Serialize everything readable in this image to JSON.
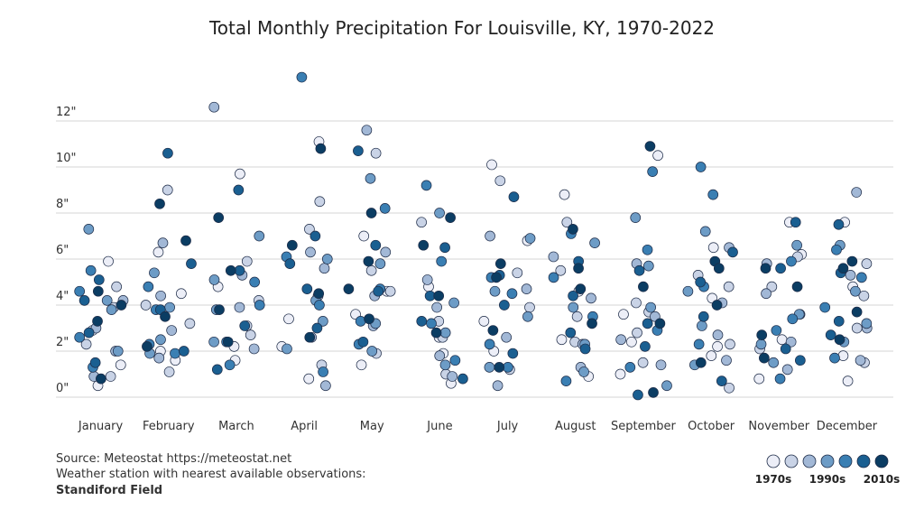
{
  "chart_data": {
    "type": "strip",
    "title": "Total Monthly Precipitation For Louisville, KY, 1970-2022",
    "categories": [
      "January",
      "February",
      "March",
      "April",
      "May",
      "June",
      "July",
      "August",
      "September",
      "October",
      "November",
      "December"
    ],
    "ylim": [
      0,
      14
    ],
    "yticks": [
      {
        "value": 0,
        "label": "0\""
      },
      {
        "value": 2,
        "label": "2\""
      },
      {
        "value": 4,
        "label": "4\""
      },
      {
        "value": 6,
        "label": "6\""
      },
      {
        "value": 8,
        "label": "8\""
      },
      {
        "value": 10,
        "label": "10\""
      },
      {
        "value": 12,
        "label": "12\""
      }
    ],
    "grid": true,
    "series": [
      {
        "color": "#eceef7",
        "values": [
          [
            1.4,
            2.9,
            0.5,
            5.9
          ],
          [
            1.6,
            2.0,
            6.3,
            4.5
          ],
          [
            9.7,
            2.2,
            4.8,
            1.6
          ],
          [
            11.1,
            3.4,
            0.8,
            2.2
          ],
          [
            7.0,
            3.6,
            1.4,
            4.6
          ],
          [
            2.6,
            0.6,
            4.8,
            1.9
          ],
          [
            10.1,
            2.0,
            6.8,
            3.3
          ],
          [
            8.8,
            2.5,
            4.6,
            0.9
          ],
          [
            10.5,
            3.6,
            1.0,
            2.4
          ],
          [
            4.3,
            6.5,
            1.8,
            2.2
          ],
          [
            7.6,
            6.2,
            0.8,
            2.5
          ],
          [
            7.6,
            4.8,
            0.7,
            1.8
          ]
        ]
      },
      {
        "color": "#c9d3e6",
        "values": [
          [
            3.9,
            2.3,
            4.8,
            0.9
          ],
          [
            9.0,
            3.2,
            1.1,
            4.0
          ],
          [
            5.9,
            2.7,
            4.2,
            3.1
          ],
          [
            8.5,
            7.3,
            4.4,
            1.4
          ],
          [
            10.6,
            4.6,
            1.9,
            5.5
          ],
          [
            7.6,
            3.3,
            2.6,
            1.0
          ],
          [
            9.4,
            5.4,
            1.2,
            3.9
          ],
          [
            7.6,
            5.5,
            2.4,
            3.5
          ],
          [
            3.7,
            1.5,
            4.1,
            2.8
          ],
          [
            4.8,
            2.3,
            0.4,
            5.3
          ],
          [
            6.1,
            3.6,
            2.1,
            4.8
          ],
          [
            5.8,
            3.0,
            1.5,
            4.4
          ]
        ]
      },
      {
        "color": "#a2b8d6",
        "values": [
          [
            4.2,
            3.0,
            2.0,
            0.9
          ],
          [
            6.7,
            4.4,
            2.9,
            1.7
          ],
          [
            12.6,
            3.9,
            5.3,
            2.1
          ],
          [
            6.3,
            5.6,
            2.6,
            0.5
          ],
          [
            11.6,
            4.4,
            3.1,
            6.3
          ],
          [
            5.1,
            3.9,
            1.8,
            0.9
          ],
          [
            7.0,
            4.7,
            2.6,
            0.5
          ],
          [
            6.1,
            4.3,
            2.3,
            1.3
          ],
          [
            3.5,
            2.5,
            1.4,
            5.8
          ],
          [
            6.5,
            4.1,
            1.6,
            2.7
          ],
          [
            5.8,
            4.5,
            2.4,
            1.2
          ],
          [
            8.9,
            5.3,
            3.0,
            1.6
          ]
        ]
      },
      {
        "color": "#6d9cc6",
        "values": [
          [
            7.3,
            3.8,
            2.0,
            4.2
          ],
          [
            5.4,
            3.9,
            2.5,
            1.9
          ],
          [
            7.0,
            5.1,
            2.4,
            3.8
          ],
          [
            6.0,
            4.2,
            2.1,
            3.3
          ],
          [
            9.5,
            5.8,
            3.2,
            2.0
          ],
          [
            8.0,
            4.1,
            2.8,
            1.4
          ],
          [
            6.9,
            4.6,
            3.5,
            1.3
          ],
          [
            6.7,
            3.9,
            2.3,
            1.1
          ],
          [
            7.8,
            5.7,
            3.9,
            0.5
          ],
          [
            7.2,
            4.6,
            3.1,
            1.4
          ],
          [
            6.6,
            3.6,
            2.3,
            1.5
          ],
          [
            6.6,
            4.6,
            3.2,
            2.4
          ]
        ]
      },
      {
        "color": "#3a7fb3",
        "values": [
          [
            5.5,
            4.6,
            2.6,
            1.3
          ],
          [
            4.8,
            3.8,
            1.9,
            2.3
          ],
          [
            5.0,
            4.0,
            2.4,
            1.4
          ],
          [
            13.9,
            6.1,
            4.0,
            1.1
          ],
          [
            8.2,
            4.7,
            3.3,
            2.3
          ],
          [
            9.2,
            5.9,
            3.2,
            1.6
          ],
          [
            5.2,
            4.5,
            2.3,
            1.3
          ],
          [
            7.1,
            5.2,
            3.5,
            0.7
          ],
          [
            9.8,
            6.4,
            2.9,
            1.3
          ],
          [
            10.0,
            8.8,
            4.8,
            2.3
          ],
          [
            5.9,
            3.4,
            2.9,
            0.8
          ],
          [
            6.4,
            5.2,
            3.9,
            1.7
          ]
        ]
      },
      {
        "color": "#1a5f91",
        "values": [
          [
            5.1,
            4.2,
            2.8,
            1.5
          ],
          [
            10.6,
            5.8,
            3.8,
            2.0
          ],
          [
            9.0,
            5.5,
            3.1,
            1.2
          ],
          [
            7.0,
            5.8,
            4.7,
            3.0
          ],
          [
            10.7,
            6.6,
            4.6,
            2.4
          ],
          [
            6.5,
            4.4,
            3.3,
            0.8
          ],
          [
            8.7,
            5.3,
            4.0,
            1.9
          ],
          [
            5.9,
            4.4,
            2.8,
            2.1
          ],
          [
            5.5,
            3.2,
            2.2,
            0.1
          ],
          [
            6.3,
            5.0,
            3.5,
            0.7
          ],
          [
            7.6,
            5.6,
            2.1,
            1.6
          ],
          [
            7.5,
            5.4,
            2.7,
            3.3
          ]
        ]
      },
      {
        "color": "#0b3d63",
        "values": [
          [
            4.6,
            4.0,
            3.3,
            0.8
          ],
          [
            8.4,
            6.8,
            3.5,
            2.2
          ],
          [
            7.8,
            5.5,
            3.8,
            2.4
          ],
          [
            10.8,
            6.6,
            4.5,
            2.6
          ],
          [
            8.0,
            5.9,
            4.7,
            3.4
          ],
          [
            7.8,
            6.6,
            4.4,
            2.8
          ],
          [
            5.8,
            5.2,
            2.9,
            1.3
          ],
          [
            7.3,
            5.6,
            4.7,
            3.2
          ],
          [
            10.9,
            4.8,
            3.2,
            0.2
          ],
          [
            5.9,
            5.6,
            4.0,
            1.5
          ],
          [
            5.6,
            4.8,
            2.7,
            1.7
          ],
          [
            5.6,
            5.9,
            3.7,
            2.5
          ]
        ]
      }
    ],
    "legend_labels": [
      "1970s",
      null,
      null,
      "1990s",
      null,
      null,
      "2010s"
    ],
    "source": "Source: Meteostat https://meteostat.net",
    "note": "Weather station with nearest available observations:",
    "station": "Standiford Field"
  }
}
